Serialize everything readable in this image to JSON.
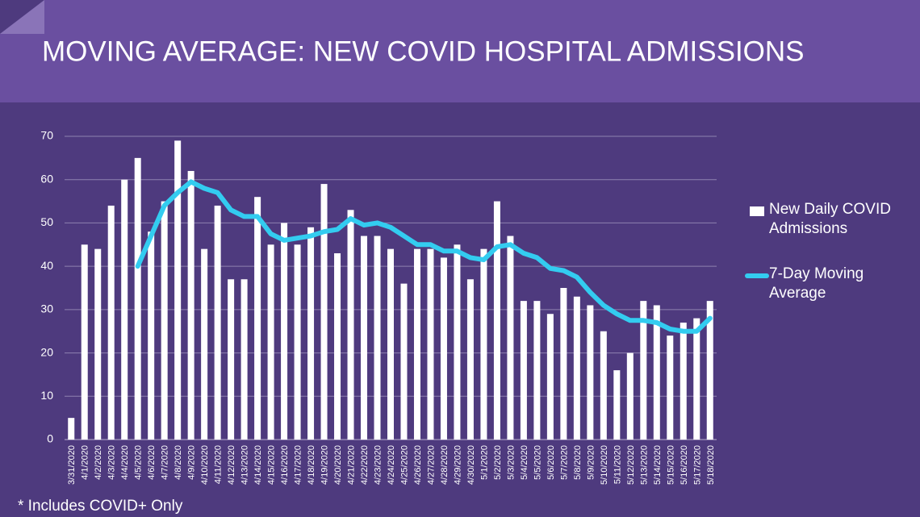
{
  "chart_data": {
    "type": "bar_line",
    "title": "MOVING AVERAGE: NEW COVID HOSPITAL ADMISSIONS",
    "footnote": "* Includes COVID+ Only",
    "categories": [
      "3/31/2020",
      "4/1/2020",
      "4/2/2020",
      "4/3/2020",
      "4/4/2020",
      "4/5/2020",
      "4/6/2020",
      "4/7/2020",
      "4/8/2020",
      "4/9/2020",
      "4/10/2020",
      "4/11/2020",
      "4/12/2020",
      "4/13/2020",
      "4/14/2020",
      "4/15/2020",
      "4/16/2020",
      "4/17/2020",
      "4/18/2020",
      "4/19/2020",
      "4/20/2020",
      "4/21/2020",
      "4/22/2020",
      "4/23/2020",
      "4/24/2020",
      "4/25/2020",
      "4/26/2020",
      "4/27/2020",
      "4/28/2020",
      "4/29/2020",
      "4/30/2020",
      "5/1/2020",
      "5/2/2020",
      "5/3/2020",
      "5/4/2020",
      "5/5/2020",
      "5/6/2020",
      "5/7/2020",
      "5/8/2020",
      "5/9/2020",
      "5/10/2020",
      "5/11/2020",
      "5/12/2020",
      "5/13/2020",
      "5/14/2020",
      "5/15/2020",
      "5/16/2020",
      "5/17/2020",
      "5/18/2020"
    ],
    "series": [
      {
        "name": "New Daily COVID Admissions",
        "type": "bar",
        "color": "#ffffff",
        "values": [
          5,
          45,
          44,
          54,
          60,
          65,
          48,
          55,
          69,
          62,
          44,
          54,
          37,
          37,
          56,
          45,
          50,
          45,
          49,
          59,
          43,
          53,
          47,
          47,
          44,
          36,
          44,
          44,
          42,
          45,
          37,
          44,
          55,
          47,
          32,
          32,
          29,
          35,
          33,
          31,
          25,
          16,
          20,
          32,
          31,
          24,
          27,
          28,
          32
        ]
      },
      {
        "name": "7-Day Moving Average",
        "type": "line",
        "color": "#33ccf0",
        "values": [
          null,
          null,
          null,
          null,
          null,
          40,
          47,
          54,
          57,
          59.5,
          58,
          57,
          53,
          51.5,
          51.5,
          47.5,
          46,
          46.5,
          47,
          48,
          48.5,
          51,
          49.5,
          50,
          49,
          47,
          45,
          45,
          43.5,
          43.5,
          42,
          41.5,
          44.5,
          45,
          43,
          42,
          39.5,
          39,
          37.5,
          34,
          31,
          29,
          27.5,
          27.5,
          27,
          25.5,
          25,
          25,
          28
        ]
      }
    ],
    "ylim": [
      0,
      70
    ],
    "yticks": [
      0,
      10,
      20,
      30,
      40,
      50,
      60,
      70
    ],
    "grid": true,
    "legend": "right"
  }
}
